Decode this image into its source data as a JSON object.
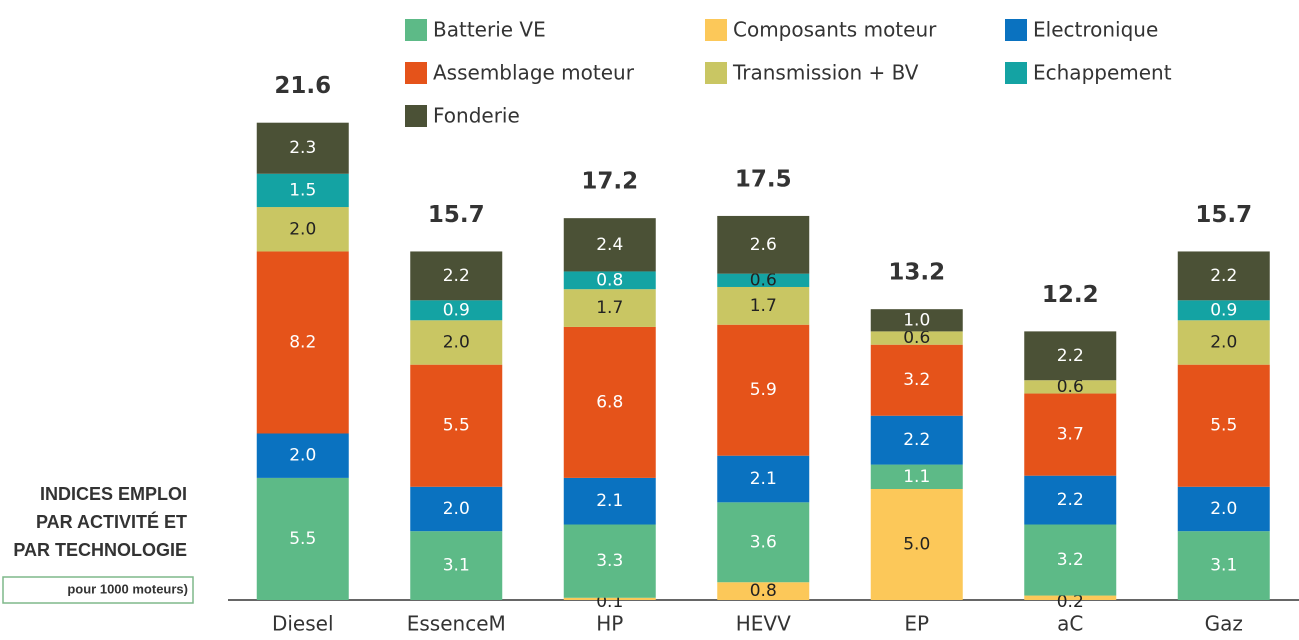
{
  "chart_data": {
    "type": "stacked_bar",
    "categories": [
      "Diesel",
      "EssenceM",
      "HP",
      "HEVV",
      "EP",
      "aC",
      "Gaz"
    ],
    "series": [
      {
        "name": "Composants moteur",
        "color": "#fcc859",
        "values": [
          null,
          null,
          0.1,
          0.8,
          5.0,
          0.2,
          null
        ],
        "value_labels": [
          null,
          null,
          "0.1",
          "0.8",
          "5.0",
          "0.2",
          null
        ]
      },
      {
        "name": "Batterie VE",
        "color": "#5dba87",
        "values": [
          5.5,
          3.1,
          3.3,
          3.6,
          1.1,
          3.2,
          3.1
        ],
        "value_labels": [
          "5.5",
          "3.1",
          "3.3",
          "3.6",
          "1.1",
          "3.2",
          "3.1"
        ]
      },
      {
        "name": "Electronique",
        "color": "#0a72c0",
        "values": [
          2.0,
          2.0,
          2.1,
          2.1,
          2.2,
          2.2,
          2.0
        ],
        "value_labels": [
          "2.0",
          "2.0",
          "2.1",
          "2.1",
          "2.2",
          "2.2",
          "2.0"
        ]
      },
      {
        "name": "Assemblage moteur",
        "color": "#e5531a",
        "values": [
          8.2,
          5.5,
          6.8,
          5.9,
          3.2,
          3.7,
          5.5
        ],
        "value_labels": [
          "8.2",
          "5.5",
          "6.8",
          "5.9",
          "3.2",
          "3.7",
          "5.5"
        ]
      },
      {
        "name": "Transmission + BV",
        "color": "#c9c663",
        "values": [
          2.0,
          2.0,
          1.7,
          1.7,
          0.6,
          0.6,
          2.0
        ],
        "value_labels": [
          "2.0",
          "2.0",
          "1.7",
          "1.7",
          "0.6",
          "0.6",
          "2.0"
        ]
      },
      {
        "name": "Echappement",
        "color": "#14a3a3",
        "values": [
          1.5,
          0.9,
          0.8,
          0.6,
          null,
          null,
          0.9
        ],
        "value_labels": [
          "1.5",
          "0.9",
          "0.8",
          "0.6",
          null,
          null,
          "0.9"
        ]
      },
      {
        "name": "Fonderie",
        "color": "#4b5136",
        "values": [
          2.3,
          2.2,
          2.4,
          2.6,
          1.0,
          2.2,
          2.2
        ],
        "value_labels": [
          "2.3",
          "2.2",
          "2.4",
          "2.6",
          "1.0",
          "2.2",
          "2.2"
        ]
      }
    ],
    "totals": [
      21.6,
      15.7,
      17.2,
      17.5,
      13.2,
      12.2,
      15.7
    ],
    "side_labels": [
      "INDICES EMPLOI",
      "PAR ACTIVITÉ ET",
      "PAR TECHNOLOGIE"
    ],
    "note": "pour 1000 moteurs)"
  }
}
